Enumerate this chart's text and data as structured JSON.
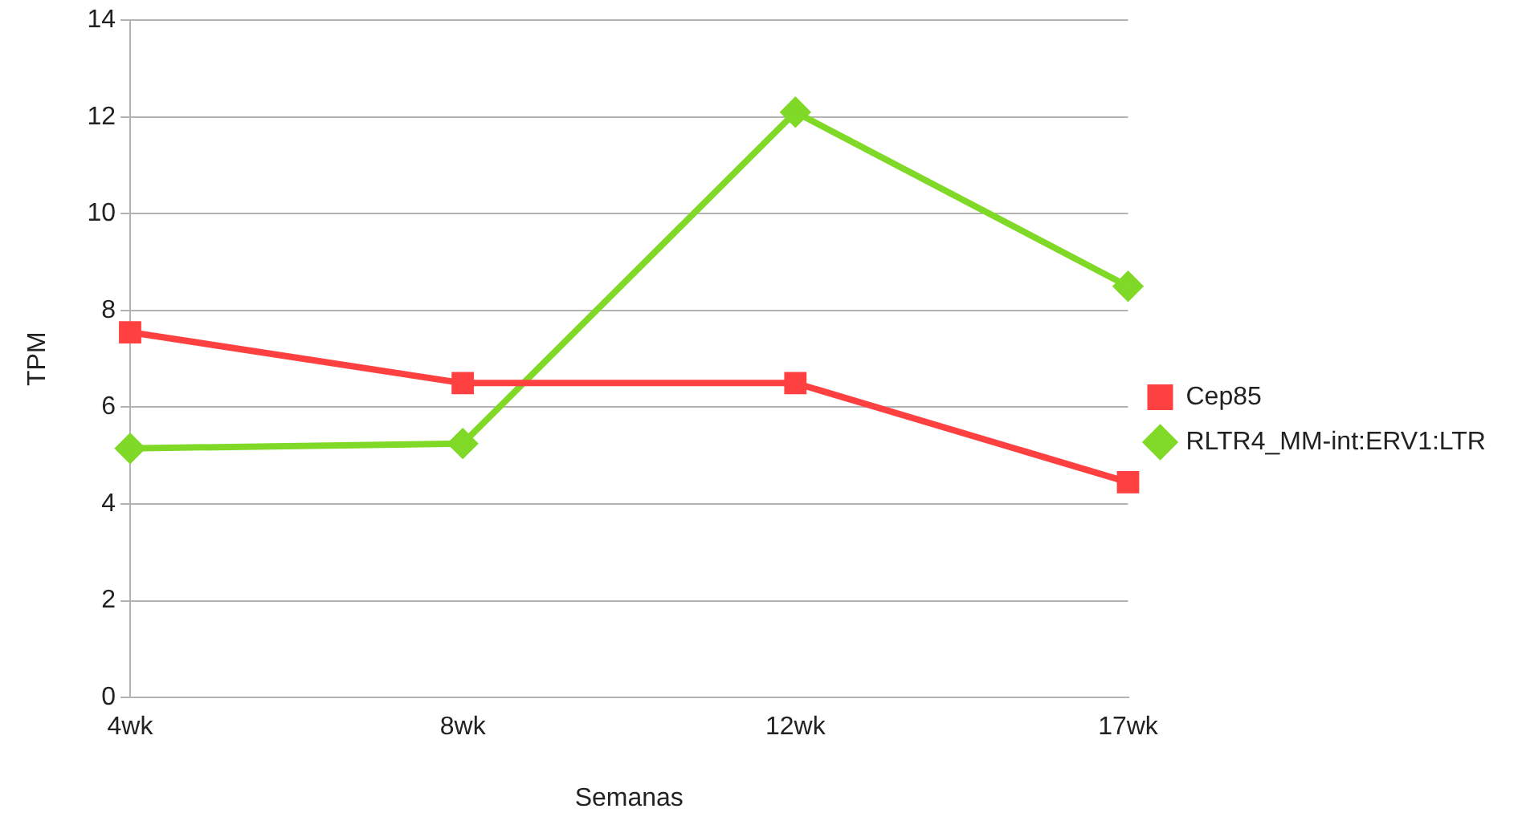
{
  "chart_data": {
    "type": "line",
    "xlabel": "Semanas",
    "ylabel": "TPM",
    "categories": [
      "4wk",
      "8wk",
      "12wk",
      "17wk"
    ],
    "series": [
      {
        "name": "Cep85",
        "color": "#ff4040",
        "marker": "square",
        "values": [
          7.55,
          6.5,
          6.5,
          4.45
        ]
      },
      {
        "name": "RLTR4_MM-int:ERV1:LTR",
        "color": "#7fd926",
        "marker": "diamond",
        "values": [
          5.15,
          5.25,
          12.1,
          8.5
        ]
      }
    ],
    "ylim": [
      0,
      14
    ],
    "yticks": [
      0,
      2,
      4,
      6,
      8,
      10,
      12,
      14
    ],
    "grid": "y",
    "legend": "right",
    "line_style": "solid"
  }
}
